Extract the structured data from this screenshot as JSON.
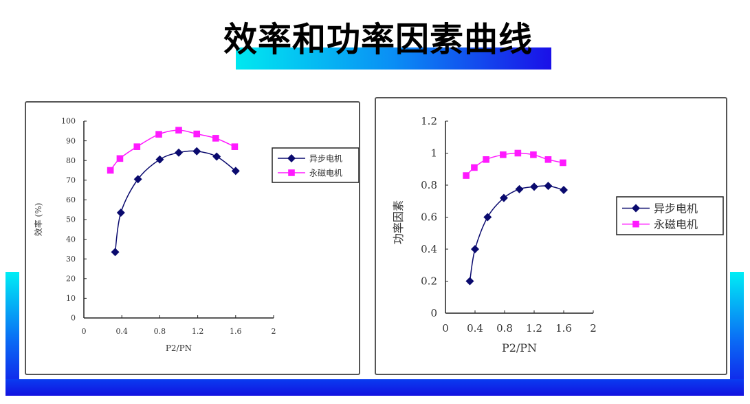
{
  "title": "效率和功率因素曲线",
  "colors": {
    "series1": "#0a0a6e",
    "series2": "#ff1aff",
    "frame_top": "#00eef5",
    "frame_bottom": "#1212e8"
  },
  "chart_data": [
    {
      "type": "line",
      "xlabel": "P2/PN",
      "ylabel": "效率 (%)",
      "xlim": [
        0,
        2
      ],
      "ylim": [
        0,
        100
      ],
      "xticks": [
        "0",
        "0.4",
        "0.8",
        "1.2",
        "1.6",
        "2"
      ],
      "yticks": [
        "0",
        "10",
        "20",
        "30",
        "40",
        "50",
        "60",
        "70",
        "80",
        "90",
        "100"
      ],
      "legend_position": "right",
      "grid": false,
      "series": [
        {
          "name": "异步电机",
          "marker": "diamond",
          "x": [
            0.33,
            0.39,
            0.57,
            0.8,
            1.0,
            1.19,
            1.4,
            1.6
          ],
          "y": [
            33.5,
            53.5,
            70.5,
            80.5,
            84,
            84.7,
            82,
            74.7
          ]
        },
        {
          "name": "永磁电机",
          "marker": "square",
          "x": [
            0.28,
            0.38,
            0.56,
            0.79,
            1.0,
            1.19,
            1.39,
            1.59
          ],
          "y": [
            75,
            81,
            87,
            93.3,
            95.4,
            93.5,
            91.3,
            87
          ]
        }
      ]
    },
    {
      "type": "line",
      "xlabel": "P2/PN",
      "ylabel": "功率因素",
      "xlim": [
        0,
        2
      ],
      "ylim": [
        0,
        1.2
      ],
      "xticks": [
        "0",
        "0.4",
        "0.8",
        "1.2",
        "1.6",
        "2"
      ],
      "yticks": [
        "0",
        "0.2",
        "0.4",
        "0.6",
        "0.8",
        "1",
        "1.2"
      ],
      "legend_position": "right",
      "grid": false,
      "series": [
        {
          "name": "异步电机",
          "marker": "diamond",
          "x": [
            0.33,
            0.4,
            0.57,
            0.79,
            1.0,
            1.2,
            1.39,
            1.6
          ],
          "y": [
            0.2,
            0.4,
            0.6,
            0.72,
            0.775,
            0.79,
            0.795,
            0.77
          ]
        },
        {
          "name": "永磁电机",
          "marker": "square",
          "x": [
            0.28,
            0.39,
            0.55,
            0.78,
            0.98,
            1.19,
            1.39,
            1.59
          ],
          "y": [
            0.86,
            0.91,
            0.96,
            0.99,
            1.0,
            0.99,
            0.96,
            0.94
          ]
        }
      ]
    }
  ]
}
